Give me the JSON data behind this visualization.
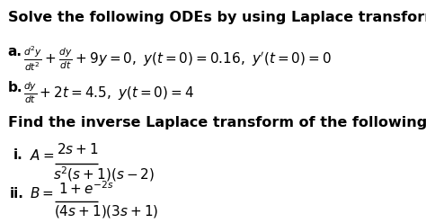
{
  "background_color": "#ffffff",
  "title_line": "Solve the following ODEs by using Laplace transform.",
  "ode_a_label": "a.",
  "ode_a_text": "$\\frac{d^2y}{dt^2} + \\frac{dy}{dt} + 9y = 0,\\ y(t=0) = 0.16,\\ y'(t=0) = 0$",
  "ode_b_label": "b.",
  "ode_b_text": "$\\frac{dy}{dt} + 2t = 4.5,\\ y(t{=}0){=}4$",
  "section2_line": "Find the inverse Laplace transform of the following expressions:",
  "inv_i_label": "i.",
  "inv_i_lhs": "$A = $",
  "inv_i_num": "$2s+1$",
  "inv_i_den": "$s^2(s+1)(s-2)$",
  "inv_ii_label": "ii.",
  "inv_ii_lhs": "$B = $",
  "inv_ii_num": "$1+e^{-2s}$",
  "inv_ii_den": "$(4s+1)(3s+1)$",
  "font_size_title": 11.5,
  "font_size_body": 11.0,
  "font_size_math": 11.0,
  "text_color": "#000000"
}
